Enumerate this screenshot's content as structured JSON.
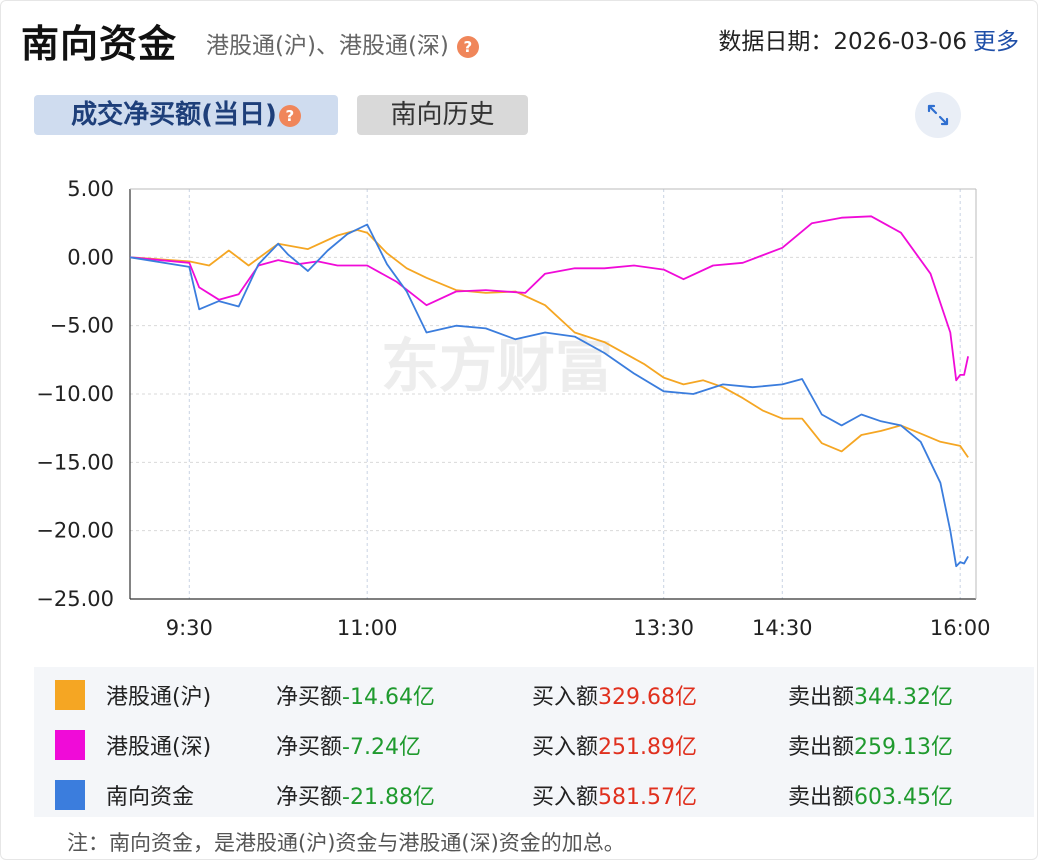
{
  "header": {
    "title": "南向资金",
    "subtitle": "港股通(沪)、港股通(深)",
    "help_glyph": "?",
    "date_label": "数据日期：",
    "date": "2026-03-06",
    "more": "更多"
  },
  "tabs": {
    "active": "成交净买额(当日)",
    "history": "南向历史"
  },
  "icons": {
    "help": "help-icon",
    "expand": "expand-icon"
  },
  "watermark": "东方财富",
  "chart_data": {
    "type": "line",
    "title": "",
    "xlabel": "",
    "ylabel": "",
    "ylim": [
      -25,
      5
    ],
    "yticks": [
      "5.00",
      "0.00",
      "-5.00",
      "-10.00",
      "-15.00",
      "-20.00",
      "-25.00"
    ],
    "xticks": [
      "9:30",
      "11:00",
      "13:30",
      "14:30",
      "16:00"
    ],
    "grid": true,
    "series": [
      {
        "name": "港股通(沪)",
        "color": "#f5a623",
        "points": [
          [
            "9:00",
            0
          ],
          [
            "9:30",
            -0.3
          ],
          [
            "9:40",
            -0.6
          ],
          [
            "9:50",
            0.5
          ],
          [
            "10:00",
            -0.6
          ],
          [
            "10:15",
            1.0
          ],
          [
            "10:30",
            0.6
          ],
          [
            "10:45",
            1.6
          ],
          [
            "10:55",
            2.0
          ],
          [
            "11:00",
            1.8
          ],
          [
            "11:10",
            0.3
          ],
          [
            "11:20",
            -0.8
          ],
          [
            "11:30",
            -1.5
          ],
          [
            "11:45",
            -2.4
          ],
          [
            "12:00",
            -2.6
          ],
          [
            "12:15",
            -2.5
          ],
          [
            "12:30",
            -3.5
          ],
          [
            "12:45",
            -5.5
          ],
          [
            "13:00",
            -6.2
          ],
          [
            "13:20",
            -7.8
          ],
          [
            "13:30",
            -8.8
          ],
          [
            "13:40",
            -9.3
          ],
          [
            "13:50",
            -9.0
          ],
          [
            "14:00",
            -9.5
          ],
          [
            "14:10",
            -10.3
          ],
          [
            "14:20",
            -11.2
          ],
          [
            "14:30",
            -11.8
          ],
          [
            "14:40",
            -11.8
          ],
          [
            "14:50",
            -13.6
          ],
          [
            "15:00",
            -14.2
          ],
          [
            "15:10",
            -13.0
          ],
          [
            "15:20",
            -12.7
          ],
          [
            "15:30",
            -12.3
          ],
          [
            "15:40",
            -12.9
          ],
          [
            "15:50",
            -13.5
          ],
          [
            "16:00",
            -13.8
          ],
          [
            "16:04",
            -14.64
          ]
        ]
      },
      {
        "name": "港股通(深)",
        "color": "#f00bd8",
        "points": [
          [
            "9:00",
            0
          ],
          [
            "9:30",
            -0.4
          ],
          [
            "9:35",
            -2.2
          ],
          [
            "9:45",
            -3.1
          ],
          [
            "9:55",
            -2.7
          ],
          [
            "10:05",
            -0.6
          ],
          [
            "10:15",
            -0.2
          ],
          [
            "10:25",
            -0.5
          ],
          [
            "10:35",
            -0.3
          ],
          [
            "10:45",
            -0.6
          ],
          [
            "11:00",
            -0.6
          ],
          [
            "11:15",
            -1.8
          ],
          [
            "11:30",
            -3.5
          ],
          [
            "11:45",
            -2.5
          ],
          [
            "12:00",
            -2.4
          ],
          [
            "12:20",
            -2.6
          ],
          [
            "12:30",
            -1.2
          ],
          [
            "12:45",
            -0.8
          ],
          [
            "13:00",
            -0.8
          ],
          [
            "13:15",
            -0.6
          ],
          [
            "13:30",
            -0.9
          ],
          [
            "13:40",
            -1.6
          ],
          [
            "13:55",
            -0.6
          ],
          [
            "14:10",
            -0.4
          ],
          [
            "14:30",
            0.7
          ],
          [
            "14:45",
            2.5
          ],
          [
            "15:00",
            2.9
          ],
          [
            "15:15",
            3.0
          ],
          [
            "15:30",
            1.8
          ],
          [
            "15:45",
            -1.2
          ],
          [
            "15:55",
            -5.5
          ],
          [
            "15:58",
            -9.0
          ],
          [
            "16:00",
            -8.6
          ],
          [
            "16:02",
            -8.6
          ],
          [
            "16:04",
            -7.24
          ]
        ]
      },
      {
        "name": "南向资金",
        "color": "#3b7ddd",
        "points": [
          [
            "9:00",
            0
          ],
          [
            "9:30",
            -0.7
          ],
          [
            "9:35",
            -3.8
          ],
          [
            "9:45",
            -3.2
          ],
          [
            "9:55",
            -3.6
          ],
          [
            "10:05",
            -0.5
          ],
          [
            "10:15",
            1.0
          ],
          [
            "10:20",
            0.2
          ],
          [
            "10:30",
            -1.0
          ],
          [
            "10:40",
            0.5
          ],
          [
            "10:50",
            1.7
          ],
          [
            "11:00",
            2.4
          ],
          [
            "11:10",
            -0.5
          ],
          [
            "11:20",
            -2.5
          ],
          [
            "11:30",
            -5.5
          ],
          [
            "11:45",
            -5.0
          ],
          [
            "12:00",
            -5.2
          ],
          [
            "12:15",
            -6.0
          ],
          [
            "12:30",
            -5.5
          ],
          [
            "12:45",
            -5.8
          ],
          [
            "13:00",
            -7.0
          ],
          [
            "13:15",
            -8.5
          ],
          [
            "13:30",
            -9.8
          ],
          [
            "13:45",
            -10.0
          ],
          [
            "14:00",
            -9.3
          ],
          [
            "14:15",
            -9.5
          ],
          [
            "14:30",
            -9.3
          ],
          [
            "14:40",
            -8.9
          ],
          [
            "14:50",
            -11.5
          ],
          [
            "15:00",
            -12.3
          ],
          [
            "15:10",
            -11.5
          ],
          [
            "15:20",
            -12.0
          ],
          [
            "15:30",
            -12.3
          ],
          [
            "15:40",
            -13.5
          ],
          [
            "15:50",
            -16.5
          ],
          [
            "15:55",
            -20.0
          ],
          [
            "15:58",
            -22.6
          ],
          [
            "16:00",
            -22.3
          ],
          [
            "16:02",
            -22.4
          ],
          [
            "16:04",
            -21.88
          ]
        ]
      }
    ]
  },
  "legend": [
    {
      "name": "港股通(沪)",
      "color": "#f5a623",
      "net_label": "净买额",
      "net": "-14.64亿",
      "buy_label": "买入额",
      "buy": "329.68亿",
      "sell_label": "卖出额",
      "sell": "344.32亿"
    },
    {
      "name": "港股通(深)",
      "color": "#f00bd8",
      "net_label": "净买额",
      "net": "-7.24亿",
      "buy_label": "买入额",
      "buy": "251.89亿",
      "sell_label": "卖出额",
      "sell": "259.13亿"
    },
    {
      "name": "南向资金",
      "color": "#3b7ddd",
      "net_label": "净买额",
      "net": "-21.88亿",
      "buy_label": "买入额",
      "buy": "581.57亿",
      "sell_label": "卖出额",
      "sell": "603.45亿"
    }
  ],
  "note": "注：南向资金，是港股通(沪)资金与港股通(深)资金的加总。"
}
